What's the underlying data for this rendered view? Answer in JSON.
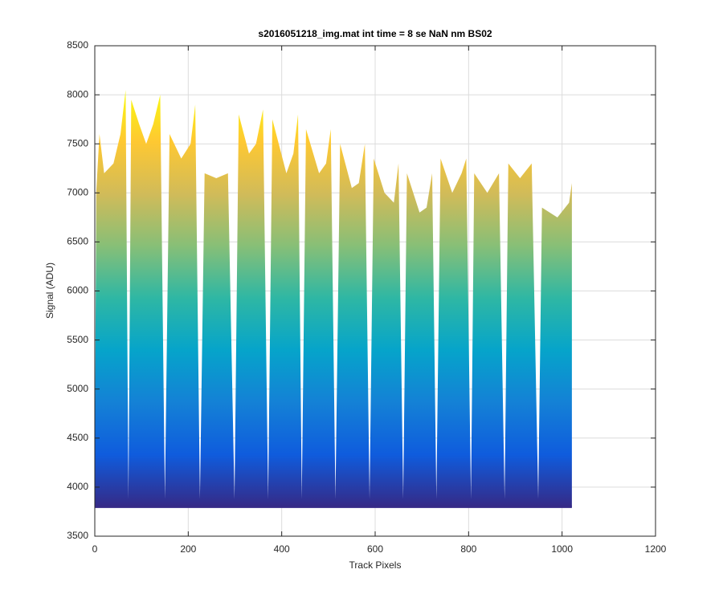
{
  "chart_data": {
    "type": "area",
    "title": "s2016051218_img.mat int time = 8 se  NaN nm BS02",
    "xlabel": "Track Pixels",
    "ylabel": "Signal (ADU)",
    "x": [
      0,
      3,
      10,
      20,
      40,
      55,
      66,
      72,
      78,
      95,
      110,
      125,
      140,
      150,
      160,
      185,
      205,
      215,
      225,
      235,
      260,
      285,
      299,
      308,
      330,
      345,
      360,
      371,
      380,
      410,
      425,
      435,
      443,
      452,
      480,
      495,
      505,
      515,
      525,
      550,
      565,
      578,
      588,
      597,
      620,
      640,
      650,
      660,
      668,
      695,
      710,
      722,
      731,
      740,
      765,
      785,
      795,
      805,
      812,
      840,
      865,
      877,
      885,
      910,
      935,
      949,
      957,
      990,
      1015,
      1021
    ],
    "values": [
      4000,
      7000,
      7600,
      7200,
      7300,
      7600,
      8050,
      3880,
      7950,
      7700,
      7500,
      7700,
      8000,
      3880,
      7600,
      7350,
      7500,
      7900,
      3880,
      7200,
      7150,
      7200,
      3880,
      7800,
      7400,
      7500,
      7850,
      3880,
      7750,
      7200,
      7400,
      7800,
      3880,
      7650,
      7200,
      7300,
      7650,
      3880,
      7500,
      7050,
      7100,
      7500,
      3880,
      7350,
      7000,
      6900,
      7300,
      3880,
      7200,
      6800,
      6850,
      7200,
      3880,
      7350,
      7000,
      7200,
      7350,
      3880,
      7200,
      7000,
      7200,
      3880,
      7300,
      7150,
      7300,
      3880,
      6850,
      6750,
      6900,
      7100
    ],
    "floor": 3800,
    "colormap": [
      "#352a87",
      "#0f5cdd",
      "#1481d6",
      "#06a4ca",
      "#2eb7a4",
      "#87bf77",
      "#d1bb59",
      "#fec832",
      "#f9fb0e"
    ],
    "xlim": [
      0,
      1200
    ],
    "xticks": [
      0,
      200,
      400,
      600,
      800,
      1000,
      1200
    ],
    "ylim": [
      3500,
      8500
    ],
    "yticks": [
      3500,
      4000,
      4500,
      5000,
      5500,
      6000,
      6500,
      7000,
      7500,
      8000,
      8500
    ],
    "grid": true
  }
}
